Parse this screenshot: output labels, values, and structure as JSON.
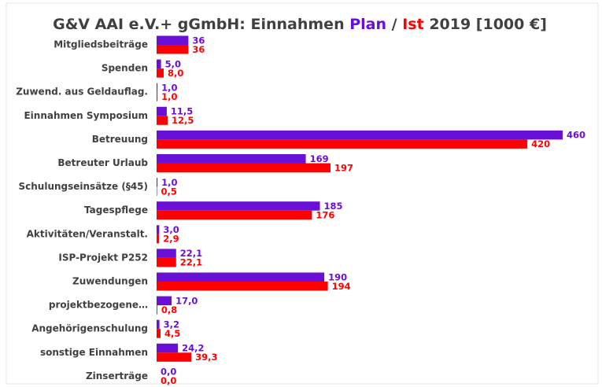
{
  "chart_data": {
    "type": "bar",
    "orientation": "horizontal",
    "title_prefix": "G&V AAI e.V.+ gGmbH: Einnahmen",
    "title_separator": "/",
    "title_suffix": "2019 [1000 €]",
    "categories": [
      "Mitgliedsbeiträge",
      "Spenden",
      "Zuwend. aus Geldauflag.",
      "Einnahmen Symposium",
      "Betreuung",
      "Betreuter Urlaub",
      "Schulungseinsätze (§45)",
      "Tagespflege",
      "Aktivitäten/Veranstalt.",
      "ISP-Projekt P252",
      "Zuwendungen",
      "projektbezogene…",
      "Angehörigenschulung",
      "sonstige Einnahmen",
      "Zinserträge"
    ],
    "series": [
      {
        "name": "Plan",
        "color": "#6a0fd6",
        "values": [
          36,
          5.0,
          1.0,
          11.5,
          460,
          169,
          1.0,
          185,
          3.0,
          22.1,
          190,
          17.0,
          3.2,
          24.2,
          0.0
        ],
        "value_labels": [
          "36",
          "5,0",
          "1,0",
          "11,5",
          "460",
          "169",
          "1,0",
          "185",
          "3,0",
          "22,1",
          "190",
          "17,0",
          "3,2",
          "24,2",
          "0,0"
        ]
      },
      {
        "name": "Ist",
        "color": "#ff0000",
        "values": [
          36,
          8.0,
          1.0,
          12.5,
          420,
          197,
          0.5,
          176,
          2.9,
          22.1,
          194,
          0.8,
          4.5,
          39.3,
          0.0
        ],
        "value_labels": [
          "36",
          "8,0",
          "1,0",
          "12,5",
          "420",
          "197",
          "0,5",
          "176",
          "2,9",
          "22,1",
          "194",
          "0,8",
          "4,5",
          "39,3",
          "0,0"
        ]
      }
    ]
  }
}
